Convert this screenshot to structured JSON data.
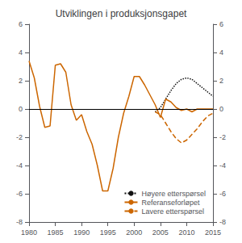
{
  "chart_data": {
    "type": "line",
    "title": "Utviklingen i produksjonsgapet",
    "xlim": [
      1980,
      2015
    ],
    "xticks": [
      1980,
      1985,
      1990,
      1995,
      2000,
      2005,
      2010,
      2015
    ],
    "ylim": [
      -8,
      6
    ],
    "yticks": [
      -8,
      -6,
      -4,
      -2,
      0,
      2,
      4,
      6
    ],
    "y2lim": [
      -8,
      6
    ],
    "y2ticks": [
      -8,
      -6,
      -4,
      -2,
      0,
      2,
      4,
      6
    ],
    "grid": false,
    "legend": "lower right",
    "series": [
      {
        "name": "Høyere etterspørsel",
        "color": "#111111",
        "line_style": "dotted",
        "x": [
          2004,
          2005,
          2006,
          2007,
          2008,
          2009,
          2010,
          2011,
          2012,
          2013,
          2014,
          2015
        ],
        "values": [
          -0.2,
          0.1,
          0.7,
          1.3,
          1.8,
          2.1,
          2.2,
          2.1,
          1.8,
          1.5,
          1.2,
          0.9
        ]
      },
      {
        "name": "Referanseforløpet",
        "color": "#cc6600",
        "line_style": "solid",
        "x": [
          1980,
          1981,
          1982,
          1983,
          1984,
          1985,
          1986,
          1987,
          1988,
          1989,
          1990,
          1991,
          1992,
          1993,
          1994,
          1995,
          1996,
          1997,
          1998,
          1999,
          2000,
          2001,
          2002,
          2003,
          2004,
          2005,
          2006,
          2007,
          2008,
          2009,
          2010,
          2011,
          2012,
          2013,
          2014,
          2015
        ],
        "values": [
          3.4,
          2.2,
          0.2,
          -1.3,
          -1.2,
          3.1,
          3.2,
          2.6,
          0.3,
          -0.8,
          -0.4,
          -1.6,
          -2.5,
          -4.0,
          -5.8,
          -5.8,
          -4.2,
          -2.0,
          -0.3,
          0.9,
          2.3,
          2.3,
          1.7,
          1.0,
          0.3,
          -0.6,
          0.7,
          0.5,
          0.1,
          -0.1,
          0.0,
          -0.2,
          0.0,
          0.0,
          0.0,
          0.0
        ]
      },
      {
        "name": "Lavere etterspørsel",
        "color": "#cc6600",
        "line_style": "dashed",
        "x": [
          2004,
          2005,
          2006,
          2007,
          2008,
          2009,
          2010,
          2011,
          2012,
          2013,
          2014,
          2015
        ],
        "values": [
          -0.2,
          -0.4,
          -1.0,
          -1.6,
          -2.1,
          -2.4,
          -2.2,
          -1.8,
          -1.4,
          -0.9,
          -0.5,
          -0.3
        ]
      }
    ]
  }
}
